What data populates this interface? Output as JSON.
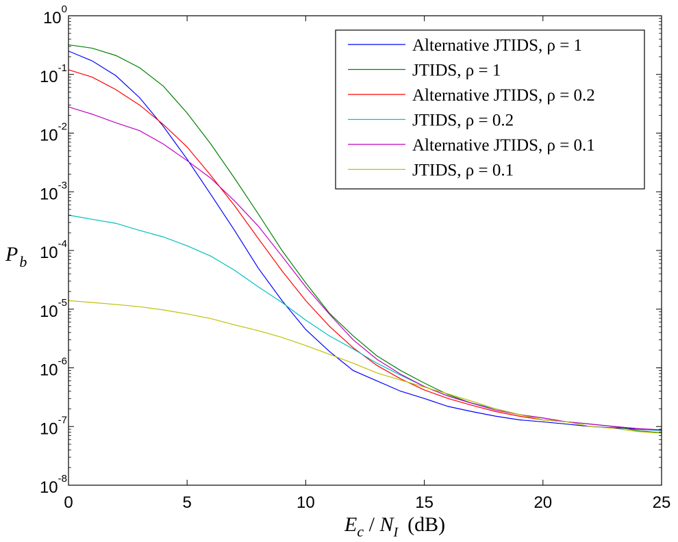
{
  "chart_data": {
    "type": "line",
    "title": "",
    "xlabel": {
      "var_main": "E",
      "var_sub": "c",
      "slash": " / ",
      "var2_main": "N",
      "var2_sub": "I",
      "unit": "(dB)"
    },
    "ylabel": {
      "main": "P",
      "sub": "b"
    },
    "xlim": [
      0,
      25
    ],
    "ylim": [
      1e-08,
      1
    ],
    "y_scale": "log",
    "grid": false,
    "legend_position": "top-right",
    "x_ticks": [
      0,
      5,
      10,
      15,
      20,
      25
    ],
    "x_tick_labels": [
      "0",
      "5",
      "10",
      "15",
      "20",
      "25"
    ],
    "y_tick_labels": [
      {
        "base": "10",
        "exp": "0",
        "value": 1
      },
      {
        "base": "10",
        "exp": "-1",
        "value": 0.1
      },
      {
        "base": "10",
        "exp": "-2",
        "value": 0.01
      },
      {
        "base": "10",
        "exp": "-3",
        "value": 0.001
      },
      {
        "base": "10",
        "exp": "-4",
        "value": 0.0001
      },
      {
        "base": "10",
        "exp": "-5",
        "value": 1e-05
      },
      {
        "base": "10",
        "exp": "-6",
        "value": 1e-06
      },
      {
        "base": "10",
        "exp": "-7",
        "value": 1e-07
      },
      {
        "base": "10",
        "exp": "-8",
        "value": 1e-08
      }
    ],
    "x": [
      0,
      1,
      2,
      3,
      4,
      5,
      6,
      7,
      8,
      9,
      10,
      11,
      12,
      13,
      14,
      15,
      16,
      17,
      18,
      19,
      20,
      21,
      22,
      23,
      24,
      25
    ],
    "series": [
      {
        "name": "Alternative JTIDS,  ρ = 1",
        "color": "#0000ff",
        "values": [
          0.25,
          0.17,
          0.095,
          0.04,
          0.013,
          0.0036,
          0.0009,
          0.00022,
          5e-05,
          1.4e-05,
          4.5e-06,
          1.9e-06,
          9e-07,
          6e-07,
          4e-07,
          3e-07,
          2.2e-07,
          1.8e-07,
          1.5e-07,
          1.3e-07,
          1.2e-07,
          1.1e-07,
          1e-07,
          9.5e-08,
          9e-08,
          8.5e-08
        ]
      },
      {
        "name": "JTIDS,  ρ = 1",
        "color": "#008000",
        "values": [
          0.32,
          0.28,
          0.21,
          0.13,
          0.063,
          0.022,
          0.0065,
          0.0017,
          0.00042,
          0.0001,
          2.8e-05,
          8.5e-06,
          3.5e-06,
          1.6e-06,
          9e-07,
          5.5e-07,
          3.5e-07,
          2.5e-07,
          2e-07,
          1.6e-07,
          1.3e-07,
          1.2e-07,
          1.1e-07,
          1e-07,
          8.5e-08,
          7.8e-08
        ]
      },
      {
        "name": "Alternative JTIDS,  ρ = 0.2",
        "color": "#ff0000",
        "values": [
          0.12,
          0.09,
          0.055,
          0.03,
          0.014,
          0.0058,
          0.0019,
          0.00058,
          0.00016,
          4.5e-05,
          1.4e-05,
          5.1e-06,
          2.2e-06,
          1.1e-06,
          6.5e-07,
          4.2e-07,
          3e-07,
          2.3e-07,
          1.8e-07,
          1.5e-07,
          1.3e-07,
          1.2e-07,
          1.1e-07,
          1e-07,
          9.2e-08,
          8.5e-08
        ]
      },
      {
        "name": "JTIDS,  ρ = 0.2",
        "color": "#00bfbf",
        "values": [
          0.0004,
          0.00034,
          0.00029,
          0.00022,
          0.00017,
          0.00012,
          8e-05,
          4.6e-05,
          2.4e-05,
          1.3e-05,
          6.5e-06,
          3.5e-06,
          2.1e-06,
          1.2e-06,
          7.5e-07,
          4.8e-07,
          3.3e-07,
          2.5e-07,
          2e-07,
          1.6e-07,
          1.4e-07,
          1.2e-07,
          1.1e-07,
          1e-07,
          9.2e-08,
          8.5e-08
        ]
      },
      {
        "name": "Alternative JTIDS,  ρ = 0.1",
        "color": "#bf00bf",
        "values": [
          0.028,
          0.021,
          0.015,
          0.011,
          0.0065,
          0.0034,
          0.0017,
          0.0007,
          0.00026,
          8e-05,
          2.4e-05,
          8.2e-06,
          3e-06,
          1.4e-06,
          7.8e-07,
          4.8e-07,
          3.3e-07,
          2.5e-07,
          1.9e-07,
          1.6e-07,
          1.4e-07,
          1.2e-07,
          1.1e-07,
          1e-07,
          9.2e-08,
          8.8e-08
        ]
      },
      {
        "name": "JTIDS,  ρ = 0.1",
        "color": "#bfbf00",
        "values": [
          1.4e-05,
          1.3e-05,
          1.2e-05,
          1.1e-05,
          9.7e-06,
          8.3e-06,
          6.9e-06,
          5.4e-06,
          4.3e-06,
          3.3e-06,
          2.4e-06,
          1.7e-06,
          1.2e-06,
          8.2e-07,
          6.2e-07,
          4.7e-07,
          3.6e-07,
          2.7e-07,
          2e-07,
          1.6e-07,
          1.3e-07,
          1.2e-07,
          1e-07,
          9.3e-08,
          8.2e-08,
          7.7e-08
        ]
      }
    ]
  }
}
